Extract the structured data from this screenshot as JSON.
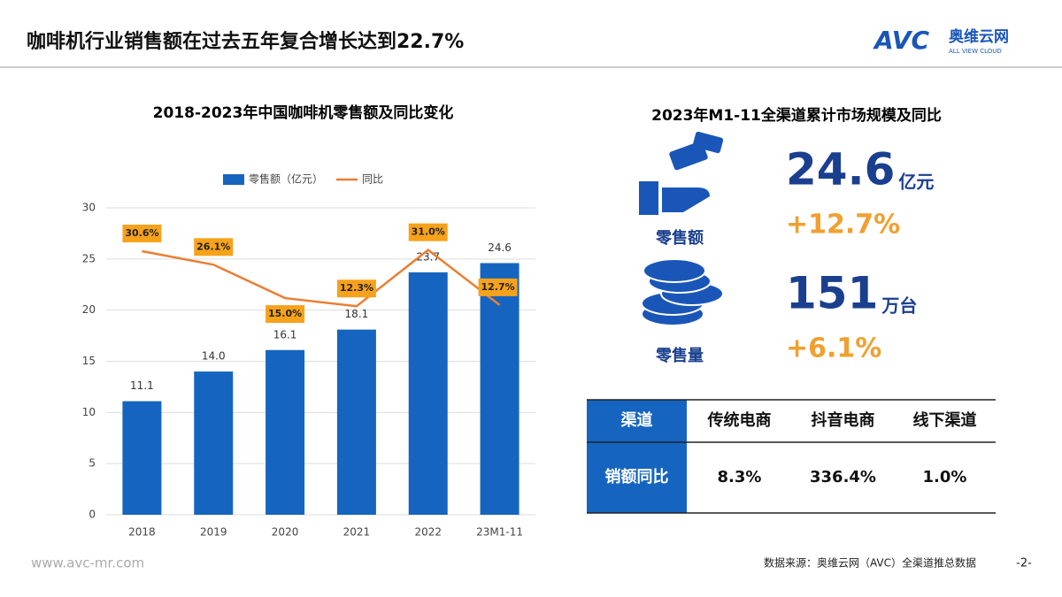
{
  "header": {
    "title": "咖啡机行业销售额在过去五年复合增长达到22.7%",
    "logo": "AVC",
    "logo_cn": "奥维云网",
    "logo_en": "ALL VIEW CLOUD"
  },
  "chart_data": {
    "type": "combo",
    "title": "2018-2023年中国咖啡机零售额及同比变化",
    "categories": [
      "2018",
      "2019",
      "2020",
      "2021",
      "2022",
      "23M1-11"
    ],
    "series": [
      {
        "name": "零售额（亿元）",
        "type": "bar",
        "color": "#1565c0",
        "values": [
          11.1,
          14.0,
          16.1,
          18.1,
          23.7,
          24.6
        ],
        "value_labels": [
          "11.1",
          "14.0",
          "16.1",
          "18.1",
          "23.7",
          "24.6"
        ]
      },
      {
        "name": "同比",
        "type": "line",
        "axis": "y2",
        "color": "#ed7d31",
        "values": [
          30.6,
          26.1,
          15.0,
          12.3,
          31.0,
          12.7
        ],
        "value_labels": [
          "30.6%",
          "26.1%",
          "15.0%",
          "12.3%",
          "31.0%",
          "12.7%"
        ]
      }
    ],
    "ylim": [
      0,
      30
    ],
    "yticks": [
      0,
      5,
      10,
      15,
      20,
      25,
      30
    ],
    "y2lim": [
      -57,
      45
    ],
    "grid": true,
    "legend": "top"
  },
  "kpi": {
    "title": "2023年M1-11全渠道累计市场规模及同比",
    "items": [
      {
        "label": "零售额",
        "value": "24.6",
        "unit": "亿元",
        "growth": "+12.7%"
      },
      {
        "label": "零售量",
        "value": "151",
        "unit": "万台",
        "growth": "+6.1%"
      }
    ]
  },
  "table": {
    "header": [
      "渠道",
      "传统电商",
      "抖音电商",
      "线下渠道"
    ],
    "rows": [
      [
        "销额同比",
        "8.3%",
        "336.4%",
        "1.0%"
      ]
    ]
  },
  "footer": {
    "site": "www.avc-mr.com",
    "source": "数据来源：奥维云网（AVC）全渠道推总数据",
    "page": "-2-"
  }
}
